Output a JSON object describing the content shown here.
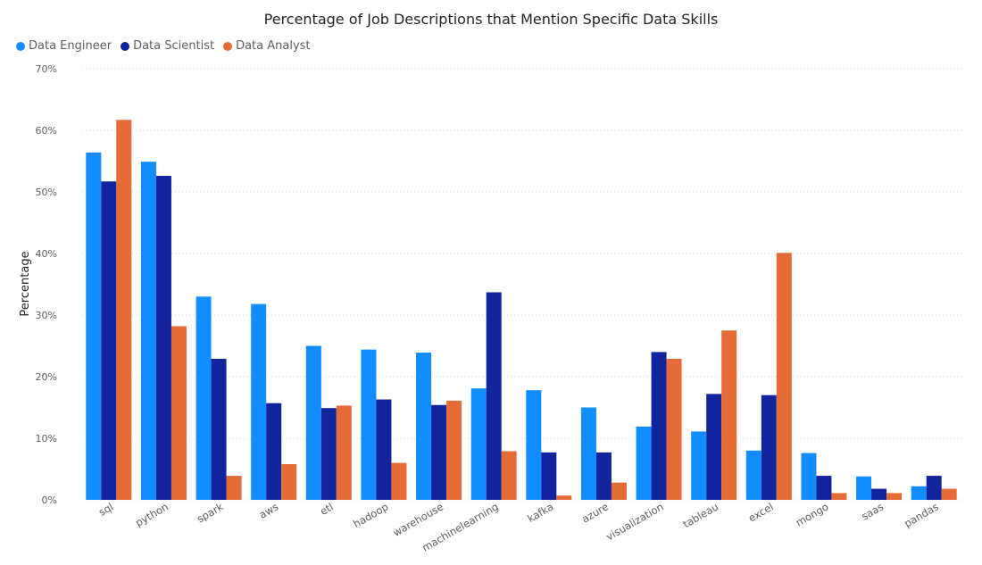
{
  "chart_data": {
    "type": "bar",
    "title": "Percentage of Job Descriptions that Mention Specific Data Skills",
    "xlabel": "",
    "ylabel": "Percentage",
    "ylim": [
      0,
      70
    ],
    "yticks": [
      "0%",
      "10%",
      "20%",
      "30%",
      "40%",
      "50%",
      "60%",
      "70%"
    ],
    "legend_position": "top-left",
    "grid": true,
    "categories": [
      "sql",
      "python",
      "spark",
      "aws",
      "etl",
      "hadoop",
      "warehouse",
      "machinelearning",
      "kafka",
      "azure",
      "visualization",
      "tableau",
      "excel",
      "mongo",
      "saas",
      "pandas"
    ],
    "series": [
      {
        "name": "Data Engineer",
        "color": "#118dff",
        "values": [
          56.4,
          54.9,
          33.0,
          31.8,
          25.0,
          24.4,
          23.9,
          18.1,
          17.8,
          15.0,
          11.9,
          11.1,
          8.0,
          7.6,
          3.8,
          2.2
        ]
      },
      {
        "name": "Data Scientist",
        "color": "#12239e",
        "values": [
          51.7,
          52.6,
          22.9,
          15.7,
          14.9,
          16.3,
          15.4,
          33.7,
          7.7,
          7.7,
          24.0,
          17.2,
          17.0,
          3.9,
          1.8,
          3.9
        ]
      },
      {
        "name": "Data Analyst",
        "color": "#e66c37",
        "values": [
          61.7,
          28.2,
          3.9,
          5.8,
          15.3,
          6.0,
          16.1,
          7.9,
          0.7,
          2.8,
          22.9,
          27.5,
          40.1,
          1.1,
          1.1,
          1.8
        ]
      }
    ]
  }
}
